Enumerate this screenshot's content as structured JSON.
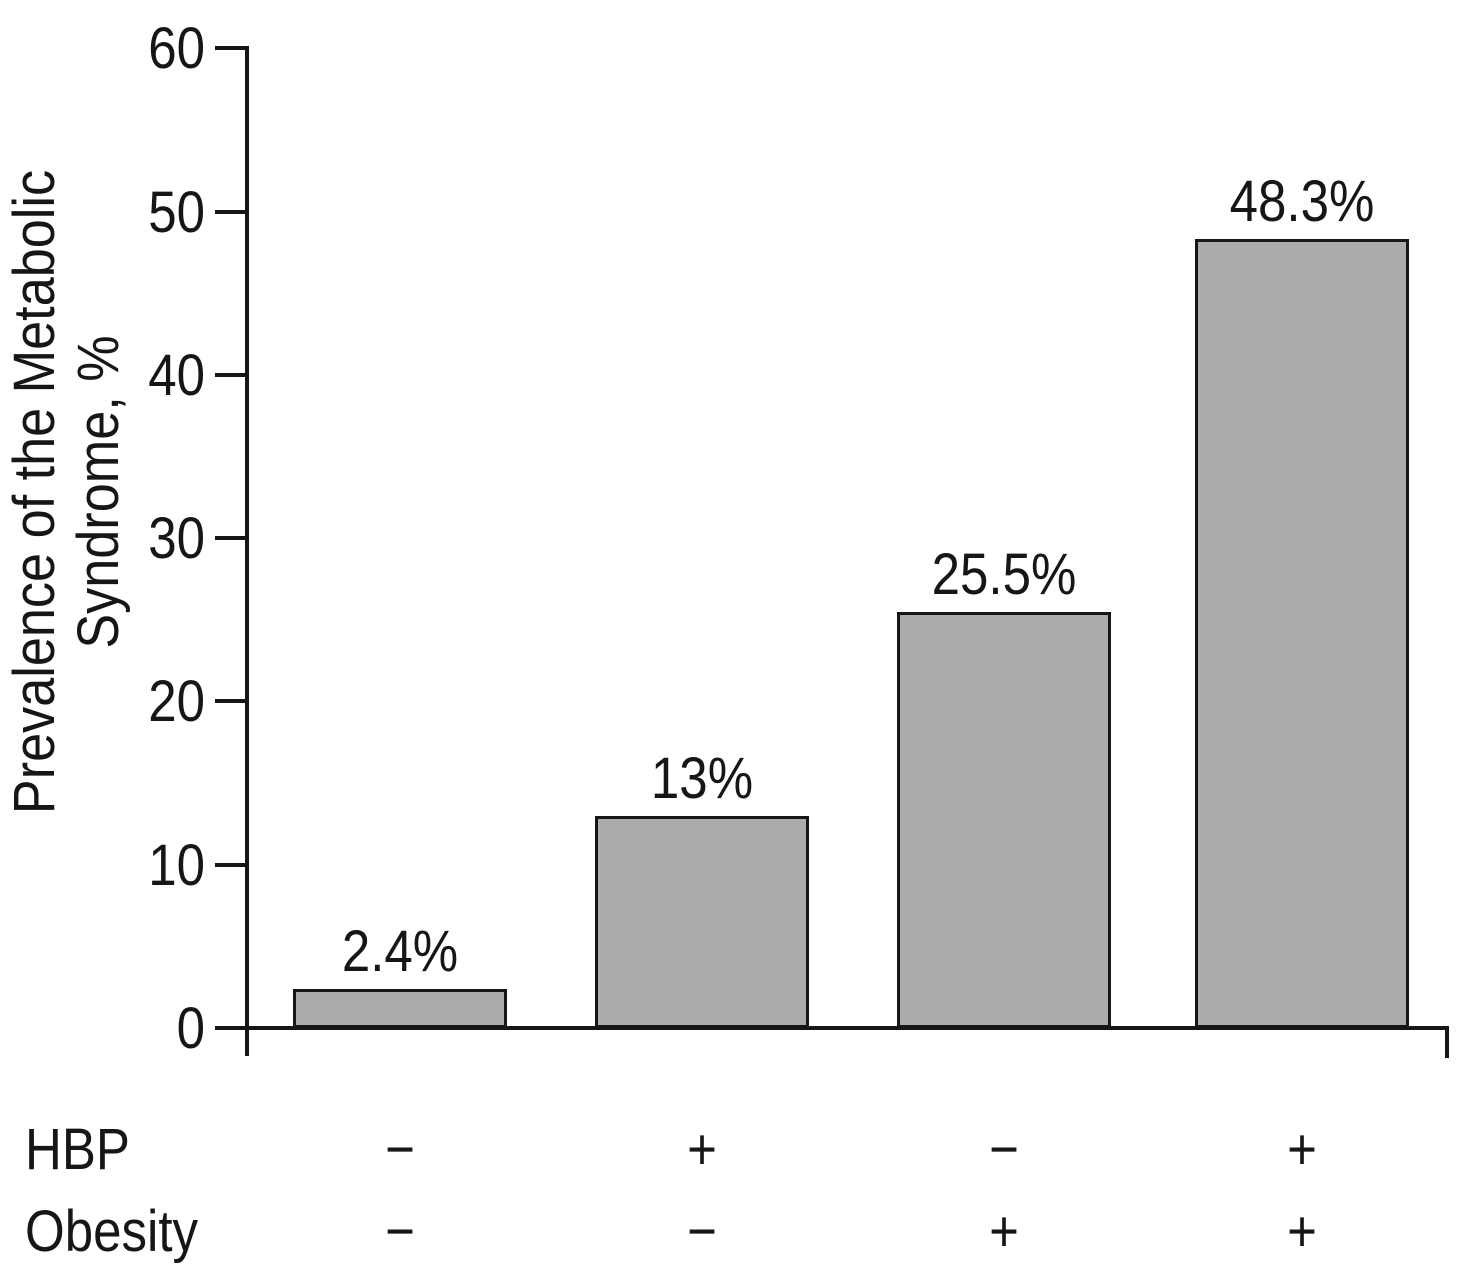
{
  "chart_data": {
    "type": "bar",
    "title": "",
    "ylabel_line1": "Prevalence of the Metabolic",
    "ylabel_line2": "Syndrome, %",
    "ylim": [
      0,
      60
    ],
    "yticks": [
      0,
      10,
      20,
      30,
      40,
      50,
      60
    ],
    "grid": false,
    "legend_position": "none",
    "bar_color": "#ababab",
    "axis_color": "#161616",
    "values": [
      2.4,
      13,
      25.5,
      48.3
    ],
    "bar_labels": [
      "2.4%",
      "13%",
      "25.5%",
      "48.3%"
    ],
    "x_factor_rows": [
      {
        "label": "HBP",
        "signs": [
          "−",
          "+",
          "−",
          "+"
        ]
      },
      {
        "label": "Obesity",
        "signs": [
          "−",
          "−",
          "+",
          "+"
        ]
      }
    ]
  }
}
